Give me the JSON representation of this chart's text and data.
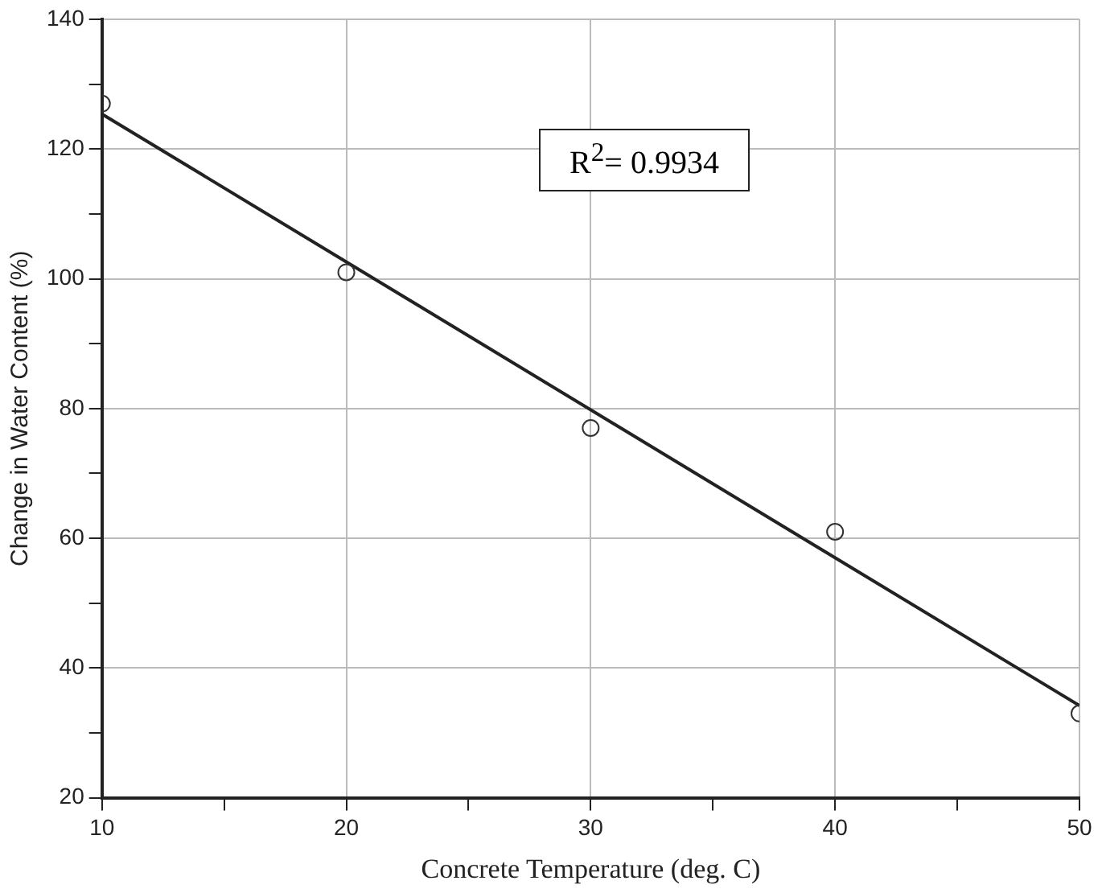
{
  "chart_data": {
    "type": "scatter",
    "xlabel": "Concrete Temperature (deg. C)",
    "ylabel": "Change in Water Content (%)",
    "series": [
      {
        "color": "#333333",
        "marker": "circle",
        "x": [
          10,
          20,
          30,
          40,
          50
        ],
        "values": [
          127,
          101,
          77,
          61,
          33
        ]
      },
      {
        "type": "line",
        "color": "#222222",
        "marker": "none",
        "line_style": "solid",
        "x": [
          10,
          50
        ],
        "values": [
          125.4,
          34.2
        ]
      }
    ],
    "xlim": [
      10,
      50
    ],
    "xticks": [
      10,
      {
        "value": 15,
        "label": null
      },
      20,
      {
        "value": 25,
        "label": null
      },
      30,
      {
        "value": 35,
        "label": null
      },
      40,
      {
        "value": 45,
        "label": null
      },
      50
    ],
    "ylim": [
      20,
      140
    ],
    "yticks": [
      20,
      {
        "value": 30,
        "label": null
      },
      40,
      {
        "value": 50,
        "label": null
      },
      60,
      {
        "value": 70,
        "label": null
      },
      80,
      {
        "value": 90,
        "label": null
      },
      100,
      {
        "value": 110,
        "label": null
      },
      120,
      {
        "value": 130,
        "label": null
      },
      140
    ],
    "grid": true,
    "legend": false,
    "annotations": [
      "R$^{2}$= 0.9934"
    ]
  }
}
